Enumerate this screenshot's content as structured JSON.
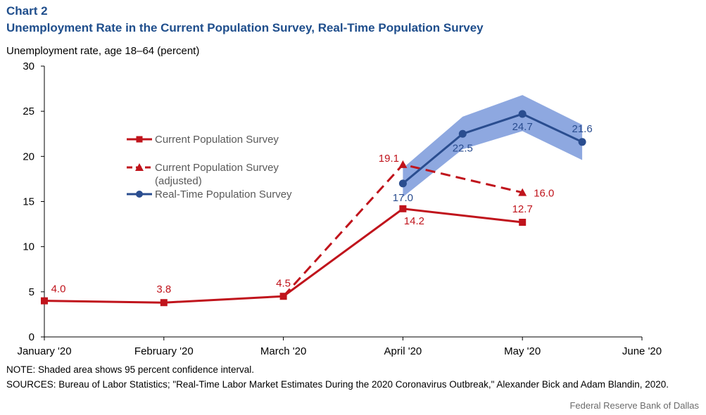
{
  "header": {
    "chart_number": "Chart 2",
    "title": "Unemployment Rate in the Current Population Survey, Real-Time Population Survey"
  },
  "footer": {
    "note": "NOTE: Shaded area shows 95 percent confidence interval.",
    "sources": "SOURCES: Bureau of Labor Statistics; \"Real-Time Labor Market Estimates During the 2020 Coronavirus Outbreak,\" Alexander Bick and Adam Blandin, 2020.",
    "credit": "Federal Reserve Bank of Dallas"
  },
  "colors": {
    "cps": "#c0141c",
    "rps": "#2a4d8f",
    "band": "#8ea8e0",
    "title": "#1f4e8c"
  },
  "chart_data": {
    "type": "line",
    "title": "Unemployment Rate in the Current Population Survey, Real-Time Population Survey",
    "ylabel": "Unemployment rate, age 18–64 (percent)",
    "xlabel": "",
    "ylim": [
      0,
      30
    ],
    "yticks": [
      0,
      5,
      10,
      15,
      20,
      25,
      30
    ],
    "xlim": [
      0,
      5
    ],
    "xticks": [
      {
        "x": 0,
        "label": "January '20"
      },
      {
        "x": 1,
        "label": "February '20"
      },
      {
        "x": 2,
        "label": "March '20"
      },
      {
        "x": 3,
        "label": "April '20"
      },
      {
        "x": 4,
        "label": "May '20"
      },
      {
        "x": 5,
        "label": "June '20"
      }
    ],
    "grid": false,
    "legend_position": "center-left",
    "series": [
      {
        "name": "Current Population Survey",
        "style": "solid",
        "marker": "square",
        "color": "#c0141c",
        "points": [
          {
            "x": 0,
            "y": 4.0,
            "label": "4.0"
          },
          {
            "x": 1,
            "y": 3.8,
            "label": "3.8"
          },
          {
            "x": 2,
            "y": 4.5,
            "label": "4.5"
          },
          {
            "x": 3,
            "y": 14.2,
            "label": "14.2"
          },
          {
            "x": 4,
            "y": 12.7,
            "label": "12.7"
          }
        ]
      },
      {
        "name": "Current Population Survey (adjusted)",
        "style": "dashed",
        "marker": "triangle",
        "color": "#c0141c",
        "points": [
          {
            "x": 2,
            "y": 4.5,
            "label": null,
            "marker": false
          },
          {
            "x": 3,
            "y": 19.1,
            "label": "19.1"
          },
          {
            "x": 4,
            "y": 16.0,
            "label": "16.0"
          }
        ]
      },
      {
        "name": "Real-Time Population Survey",
        "style": "solid",
        "marker": "circle",
        "color": "#2a4d8f",
        "points": [
          {
            "x": 3.0,
            "y": 17.0,
            "label": "17.0"
          },
          {
            "x": 3.5,
            "y": 22.5,
            "label": "22.5"
          },
          {
            "x": 4.0,
            "y": 24.7,
            "label": "24.7"
          },
          {
            "x": 4.5,
            "y": 21.6,
            "label": "21.6"
          }
        ]
      }
    ],
    "confidence_band": {
      "series": "Real-Time Population Survey",
      "x": [
        3.0,
        3.5,
        4.0,
        4.5
      ],
      "lower": [
        15.5,
        20.8,
        22.8,
        19.6
      ],
      "upper": [
        18.7,
        24.4,
        26.8,
        23.5
      ]
    }
  }
}
